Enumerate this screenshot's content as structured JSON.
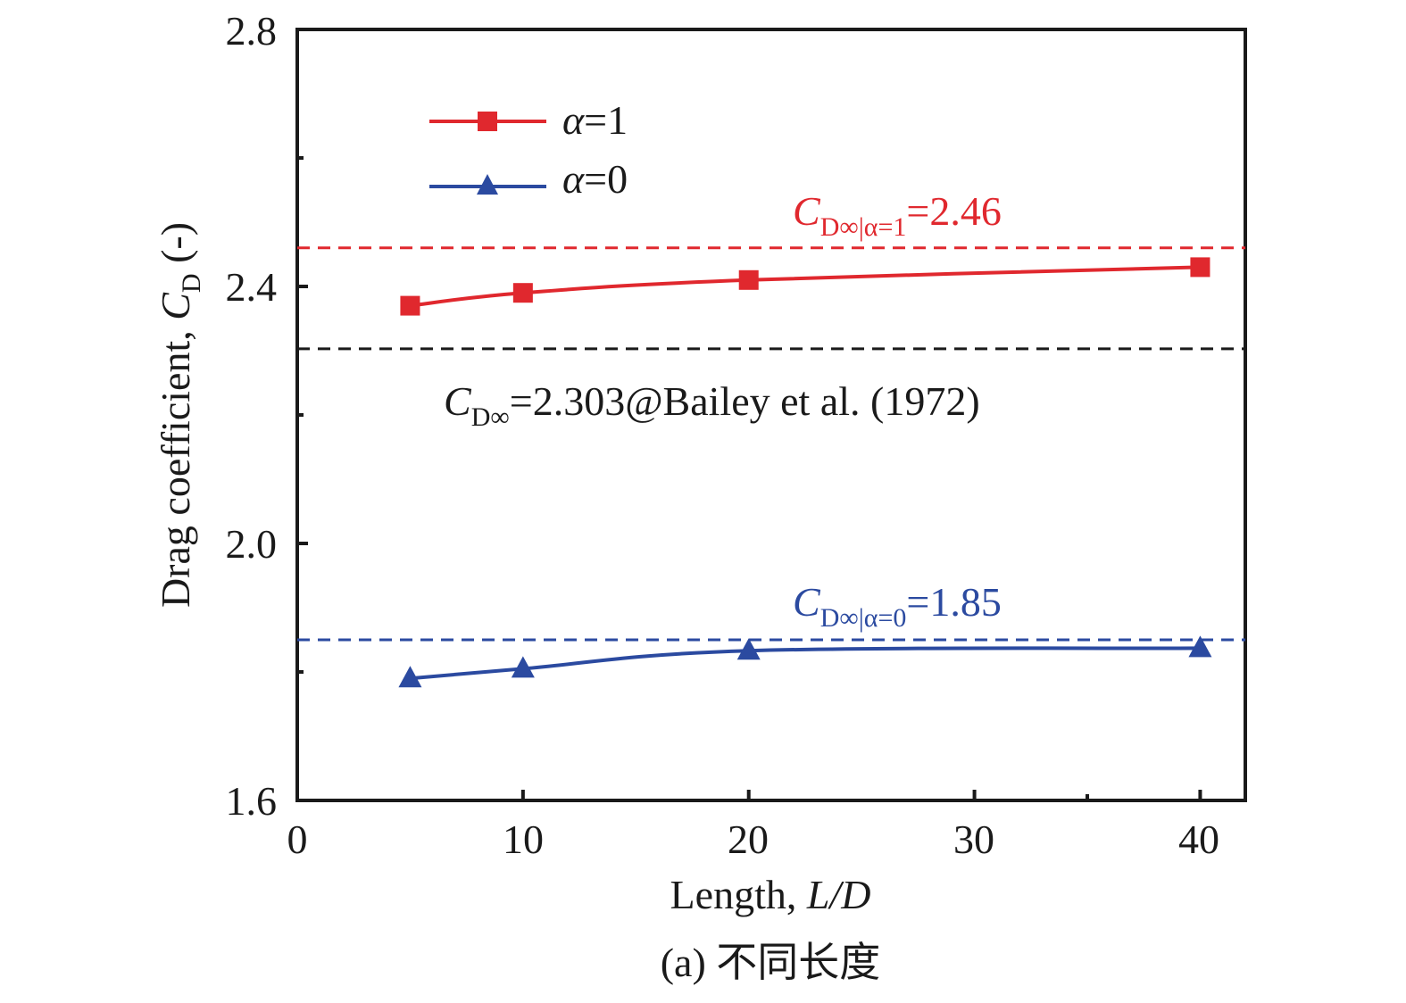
{
  "chart_data": {
    "type": "line",
    "title": "",
    "xlabel": "Length, L/D",
    "xlabel_parts": {
      "text": "Length, ",
      "var": "L/D"
    },
    "ylabel_parts": {
      "text": "Drag coefficient, ",
      "var": "C",
      "sub": "D",
      "suffix": " (-)"
    },
    "xlim": [
      0,
      42
    ],
    "ylim": [
      1.6,
      2.8
    ],
    "xticks": [
      0,
      10,
      20,
      30,
      40
    ],
    "xtick_labels": [
      "0",
      "10",
      "20",
      "30",
      "40"
    ],
    "xminor": [
      35
    ],
    "yticks": [
      1.6,
      2.0,
      2.4,
      2.8
    ],
    "ytick_labels": [
      "1.6",
      "2.0",
      "2.4",
      "2.8"
    ],
    "yminor": [
      1.8,
      2.2,
      2.6
    ],
    "series": [
      {
        "name": "α=1",
        "symbol": "α",
        "eq": "=1",
        "color": "#e0282e",
        "marker": "square",
        "x": [
          5,
          10,
          20,
          40
        ],
        "y": [
          2.37,
          2.39,
          2.41,
          2.43
        ]
      },
      {
        "name": "α=0",
        "symbol": "α",
        "eq": "=0",
        "color": "#2b4aa0",
        "marker": "triangle",
        "x": [
          5,
          10,
          20,
          40
        ],
        "y": [
          1.79,
          1.805,
          1.833,
          1.837
        ]
      }
    ],
    "reference_lines": [
      {
        "y": 2.46,
        "color": "#e0282e",
        "label_var": "C",
        "label_sub": "D∞|α=1",
        "label_val": "=2.46"
      },
      {
        "y": 2.303,
        "color": "#1a1a1a",
        "label_var": "C",
        "label_sub": "D∞",
        "label_val": "=2.303@Bailey et al. (1972)"
      },
      {
        "y": 1.85,
        "color": "#2b4aa0",
        "label_var": "C",
        "label_sub": "D∞|α=0",
        "label_val": "=1.85"
      }
    ],
    "legend_position": "top-left",
    "grid": false
  },
  "caption": "(a) 不同长度"
}
